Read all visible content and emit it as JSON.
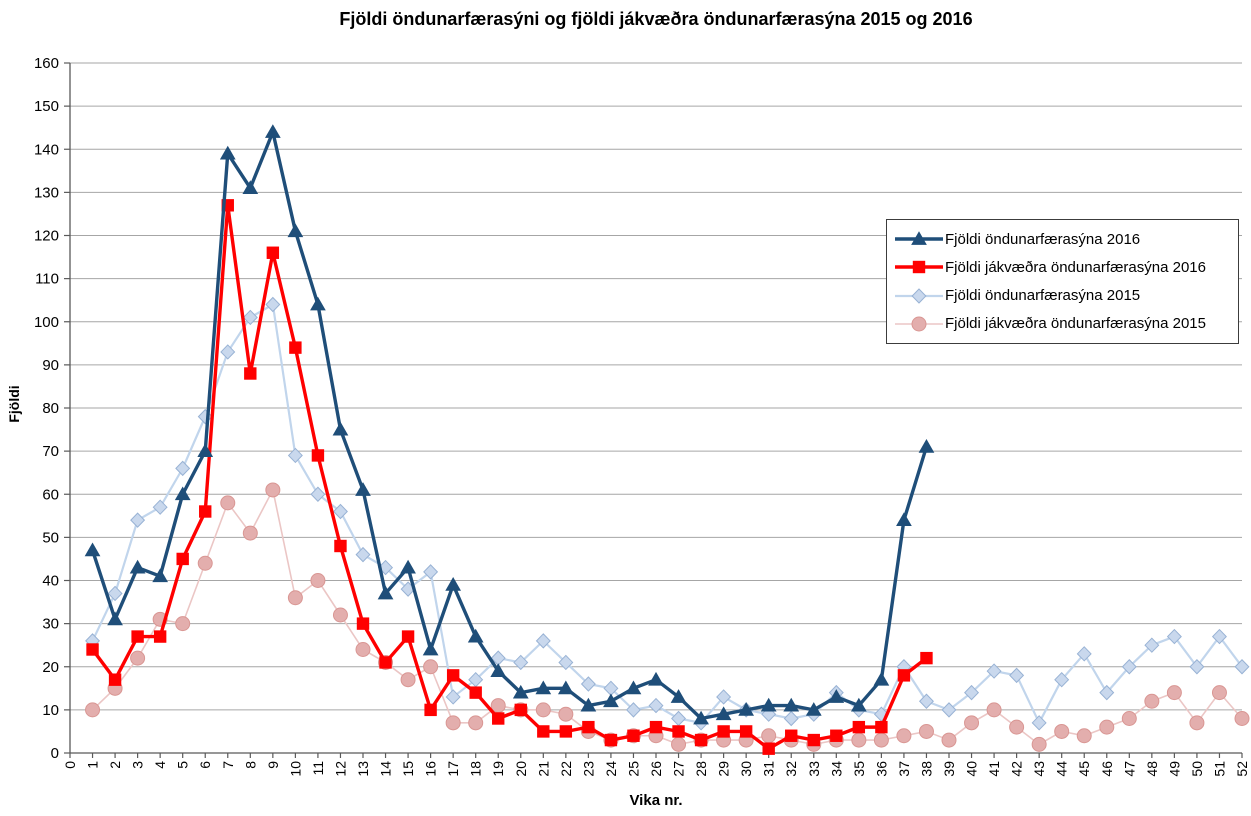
{
  "title": "Fjöldi  öndunarfærasýni og fjöldi jákvæðra öndunarfærasýna 2015 og 2016",
  "y_axis": {
    "title": "Fjöldi",
    "min": 0,
    "max": 160,
    "step": 10
  },
  "x_axis": {
    "title": "Vika nr.",
    "min": 0,
    "max": 52,
    "step": 1
  },
  "colors": {
    "grid": "#A6A6A6",
    "axis": "#595959",
    "series_2016_total": "#1F4E79",
    "series_2016_positive": "#FF0000",
    "series_2015_total_line": "#C1D5EC",
    "series_2015_total_fill": "#C9D8ED",
    "series_2015_total_stroke": "#98B2D4",
    "series_2015_positive_line": "#EBC6C5",
    "series_2015_positive_fill": "#E3AEAD",
    "series_2015_positive_stroke": "#D99693"
  },
  "chart_data": {
    "type": "line",
    "title": "Fjöldi  öndunarfærasýni og fjöldi jákvæðra öndunarfærasýna 2015 og 2016",
    "xlabel": "Vika nr.",
    "ylabel": "Fjöldi",
    "xlim": [
      0,
      52
    ],
    "ylim": [
      0,
      160
    ],
    "grid": "horizontal",
    "legend_position": "inside-right",
    "x_weeks": "1..52 (2015 series) / 1..38 (2016 series)",
    "series": [
      {
        "name": "Fjöldi öndunarfærasýna 2016",
        "marker": "triangle",
        "line_color": "#1F4E79",
        "marker_fill": "#1F4E79",
        "marker_stroke": "#1F4E79",
        "line_width": 3.4,
        "start_week": 1,
        "values": [
          47,
          31,
          43,
          41,
          60,
          70,
          139,
          131,
          144,
          121,
          104,
          75,
          61,
          37,
          43,
          24,
          39,
          27,
          19,
          14,
          15,
          15,
          11,
          12,
          15,
          17,
          13,
          8,
          9,
          10,
          11,
          11,
          10,
          13,
          11,
          17,
          54,
          71
        ]
      },
      {
        "name": "Fjöldi jákvæðra öndunarfærasýna 2016",
        "marker": "square",
        "line_color": "#FF0000",
        "marker_fill": "#FF0000",
        "marker_stroke": "#FF0000",
        "line_width": 3.4,
        "start_week": 1,
        "values": [
          24,
          17,
          27,
          27,
          45,
          56,
          127,
          88,
          116,
          94,
          69,
          48,
          30,
          21,
          27,
          10,
          18,
          14,
          8,
          10,
          5,
          5,
          6,
          3,
          4,
          6,
          5,
          3,
          5,
          5,
          1,
          4,
          3,
          4,
          6,
          6,
          18,
          22
        ]
      },
      {
        "name": "Fjöldi öndunarfærasýna 2015",
        "marker": "diamond",
        "line_color": "#C1D5EC",
        "marker_fill": "#C9D8ED",
        "marker_stroke": "#98B2D4",
        "line_width": 2.2,
        "start_week": 1,
        "values": [
          26,
          37,
          54,
          57,
          66,
          78,
          93,
          101,
          104,
          69,
          60,
          56,
          46,
          43,
          38,
          42,
          13,
          17,
          22,
          21,
          26,
          21,
          16,
          15,
          10,
          11,
          8,
          7,
          13,
          10,
          9,
          8,
          9,
          14,
          10,
          9,
          20,
          12,
          10,
          14,
          19,
          18,
          7,
          17,
          23,
          14,
          20,
          25,
          27,
          20,
          27,
          20
        ]
      },
      {
        "name": "Fjöldi jákvæðra öndunarfærasýna 2015",
        "marker": "circle",
        "line_color": "#EBC6C5",
        "marker_fill": "#E3AEAD",
        "marker_stroke": "#D99693",
        "line_width": 1.6,
        "start_week": 1,
        "values": [
          10,
          15,
          22,
          31,
          30,
          44,
          58,
          51,
          61,
          36,
          40,
          32,
          24,
          21,
          17,
          20,
          7,
          7,
          11,
          10,
          10,
          9,
          5,
          3,
          4,
          4,
          2,
          3,
          3,
          3,
          4,
          3,
          2,
          3,
          3,
          3,
          4,
          5,
          3,
          7,
          10,
          6,
          2,
          5,
          4,
          6,
          8,
          12,
          14,
          7,
          14,
          8
        ]
      }
    ]
  }
}
